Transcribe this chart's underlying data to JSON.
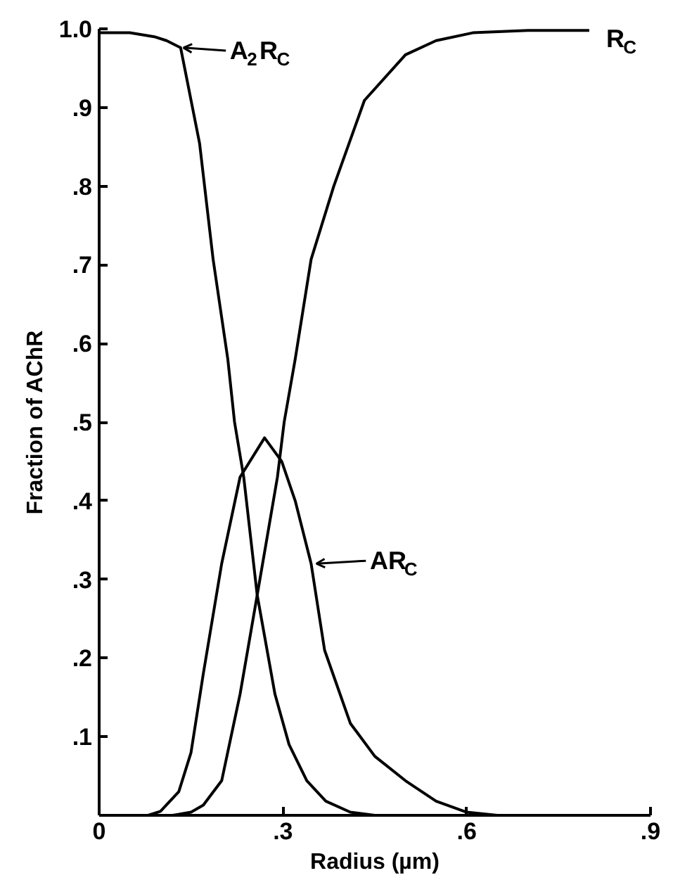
{
  "chart_data": {
    "type": "line",
    "xlabel": "Radius (µm)",
    "ylabel": "Fraction of AChR",
    "xlim": [
      0,
      0.9
    ],
    "ylim": [
      0,
      1.0
    ],
    "xticks": [
      0,
      {
        "value": 0.3,
        "label": ".3"
      },
      {
        "value": 0.6,
        "label": ".6"
      },
      {
        "value": 0.9,
        "label": ".9"
      }
    ],
    "yticks": [
      {
        "value": 0.1,
        "label": ".1"
      },
      {
        "value": 0.2,
        "label": ".2"
      },
      {
        "value": 0.3,
        "label": ".3"
      },
      {
        "value": 0.4,
        "label": ".4"
      },
      {
        "value": 0.5,
        "label": ".5"
      },
      {
        "value": 0.6,
        "label": ".6"
      },
      {
        "value": 0.7,
        "label": ".7"
      },
      {
        "value": 0.8,
        "label": ".8"
      },
      {
        "value": 0.9,
        "label": ".9"
      },
      {
        "value": 1.0,
        "label": "1.0"
      }
    ],
    "grid": false,
    "marker": "none",
    "line_style": "solid",
    "series": [
      {
        "color": "#000000",
        "x": [
          0,
          0.05,
          0.09,
          0.11,
          0.133,
          0.164,
          0.186,
          0.21,
          0.221,
          0.236,
          0.258,
          0.287,
          0.31,
          0.339,
          0.37,
          0.41,
          0.45
        ],
        "values": [
          0.995,
          0.995,
          0.99,
          0.985,
          0.976,
          0.854,
          0.707,
          0.58,
          0.5,
          0.43,
          0.28,
          0.154,
          0.09,
          0.044,
          0.018,
          0.004,
          0
        ]
      },
      {
        "color": "#000000",
        "x": [
          0.12,
          0.15,
          0.17,
          0.2,
          0.23,
          0.258,
          0.291,
          0.302,
          0.32,
          0.346,
          0.383,
          0.433,
          0.5,
          0.55,
          0.61,
          0.7,
          0.8
        ],
        "values": [
          0,
          0.004,
          0.013,
          0.044,
          0.154,
          0.28,
          0.43,
          0.5,
          0.58,
          0.707,
          0.8,
          0.909,
          0.967,
          0.985,
          0.995,
          0.998,
          0.998
        ]
      },
      {
        "color": "#000000",
        "x": [
          0.08,
          0.1,
          0.13,
          0.15,
          0.17,
          0.2,
          0.23,
          0.27,
          0.298,
          0.32,
          0.346,
          0.368,
          0.41,
          0.45,
          0.5,
          0.55,
          0.6,
          0.65
        ],
        "values": [
          0,
          0.005,
          0.03,
          0.08,
          0.18,
          0.32,
          0.43,
          0.48,
          0.45,
          0.4,
          0.32,
          0.21,
          0.117,
          0.075,
          0.044,
          0.018,
          0.004,
          0
        ]
      }
    ],
    "annotations": [
      {
        "text": "A$_{2}$R$_{C}$",
        "x": 0.133,
        "y": 0.976
      },
      {
        "text": "R$_{C}$",
        "x": 0.8,
        "y": 0.998
      },
      {
        "text": "AR$_{C}$",
        "x": 0.35,
        "y": 0.32
      }
    ]
  }
}
